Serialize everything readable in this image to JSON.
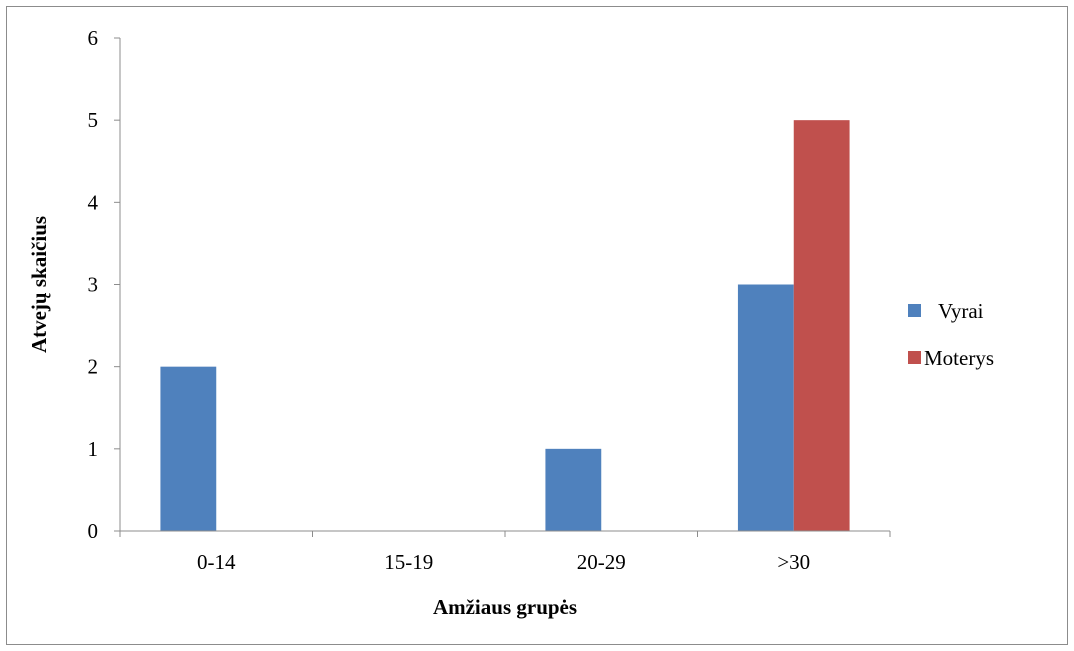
{
  "chart_data": {
    "type": "bar",
    "title": "",
    "xlabel": "Amžiaus grupės",
    "ylabel": "Atvejų skaičius",
    "categories": [
      "0-14",
      "15-19",
      "20-29",
      ">30"
    ],
    "series": [
      {
        "name": "Vyrai",
        "values": [
          2,
          0,
          1,
          3
        ],
        "color": "#4f81bd"
      },
      {
        "name": "Moterys",
        "values": [
          0,
          0,
          0,
          5
        ],
        "color": "#c0504d"
      }
    ],
    "ylim": [
      0,
      6
    ],
    "yticks": [
      0,
      1,
      2,
      3,
      4,
      5,
      6
    ],
    "grid": false,
    "legend_position": "right"
  }
}
